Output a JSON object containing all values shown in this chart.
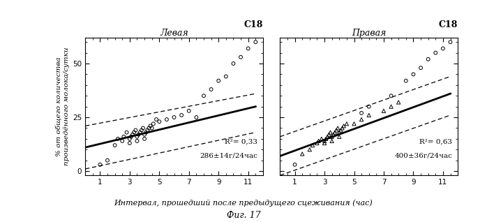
{
  "left_circles_x": [
    1.0,
    1.5,
    2.0,
    2.2,
    2.5,
    2.6,
    2.8,
    3.0,
    3.0,
    3.1,
    3.2,
    3.3,
    3.4,
    3.5,
    3.5,
    3.6,
    3.7,
    3.8,
    3.9,
    4.0,
    4.0,
    4.1,
    4.2,
    4.3,
    4.4,
    4.5,
    4.6,
    4.8,
    5.0,
    5.5,
    6.0,
    6.5,
    7.0,
    7.5,
    8.0,
    8.5,
    9.0,
    9.5,
    10.0,
    10.5,
    11.0,
    11.5
  ],
  "left_circles_y": [
    3,
    5,
    12,
    15,
    14,
    16,
    18,
    13,
    15,
    16,
    17,
    18,
    19,
    14,
    16,
    17,
    18,
    19,
    20,
    15,
    17,
    18,
    19,
    20,
    21,
    20,
    22,
    24,
    23,
    24,
    25,
    26,
    28,
    25,
    35,
    38,
    42,
    44,
    50,
    53,
    57,
    60
  ],
  "right_triangles_x": [
    1.5,
    2.0,
    2.2,
    2.5,
    2.6,
    2.8,
    3.0,
    3.0,
    3.1,
    3.2,
    3.3,
    3.4,
    3.5,
    3.5,
    3.6,
    3.7,
    3.8,
    3.9,
    4.0,
    4.0,
    4.1,
    4.2,
    4.3,
    4.5,
    5.0,
    5.5,
    6.0,
    7.0,
    7.5,
    8.0
  ],
  "right_triangles_y": [
    8,
    10,
    12,
    13,
    14,
    15,
    13,
    14,
    15,
    16,
    17,
    18,
    14,
    16,
    17,
    18,
    19,
    20,
    16,
    18,
    19,
    20,
    21,
    22,
    22,
    24,
    26,
    28,
    30,
    32
  ],
  "right_circles_x": [
    1.0,
    5.5,
    6.0,
    7.5,
    8.5,
    9.0,
    9.5,
    10.0,
    10.5,
    11.0,
    11.5
  ],
  "right_circles_y": [
    3,
    27,
    30,
    35,
    42,
    45,
    48,
    52,
    55,
    57,
    60
  ],
  "left_line_x0": 0,
  "left_line_x1": 11.5,
  "left_line_y0": 11,
  "left_line_y1": 30,
  "left_upper_y0": 21,
  "left_upper_y1": 36,
  "left_lower_y0": 1,
  "left_lower_y1": 18,
  "right_line_x0": 0,
  "right_line_x1": 11.5,
  "right_line_y0": 7,
  "right_line_y1": 36,
  "right_upper_y0": 16,
  "right_upper_y1": 44,
  "right_lower_y0": -2,
  "right_lower_y1": 26,
  "left_title": "Левая",
  "right_title": "Правая",
  "c18_label": "C18",
  "left_r2": "R²= 0,33",
  "left_stat": "286±14г/24час",
  "right_r2": "R²= 0,63",
  "right_stat": "400±36г/24час",
  "ylabel_line1": "% от общего количества",
  "ylabel_line2": "произведённого молока/сутки",
  "xlabel": "Интервал, прошедший после предыдущего сцеживания (час)",
  "fig_caption": "Фиг. 17",
  "xlim": [
    0,
    12
  ],
  "ylim": [
    -2,
    62
  ],
  "yticks": [
    0,
    25,
    50
  ],
  "xticks": [
    1,
    3,
    5,
    7,
    9,
    11
  ]
}
